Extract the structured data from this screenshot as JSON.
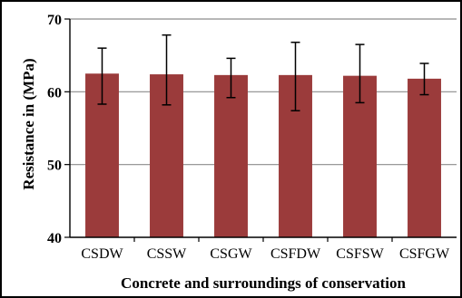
{
  "chart_data": {
    "type": "bar",
    "title": "",
    "xlabel": "Concrete and surroundings of conservation",
    "ylabel": "Resistance in (MPa)",
    "categories": [
      "CSDW",
      "CSSW",
      "CSGW",
      "CSFDW",
      "CSFSW",
      "CSFGW"
    ],
    "values": [
      62.5,
      62.4,
      62.3,
      62.3,
      62.2,
      61.8
    ],
    "error_upper": [
      66.0,
      67.8,
      64.6,
      66.8,
      66.5,
      63.9
    ],
    "error_lower": [
      58.3,
      58.2,
      59.2,
      57.4,
      58.5,
      59.6
    ],
    "ylim": [
      40,
      70
    ],
    "yticks": [
      40,
      50,
      60,
      70
    ],
    "grid": true,
    "bar_color": "#9b3b3b",
    "grid_color": "#8c8c8c"
  }
}
